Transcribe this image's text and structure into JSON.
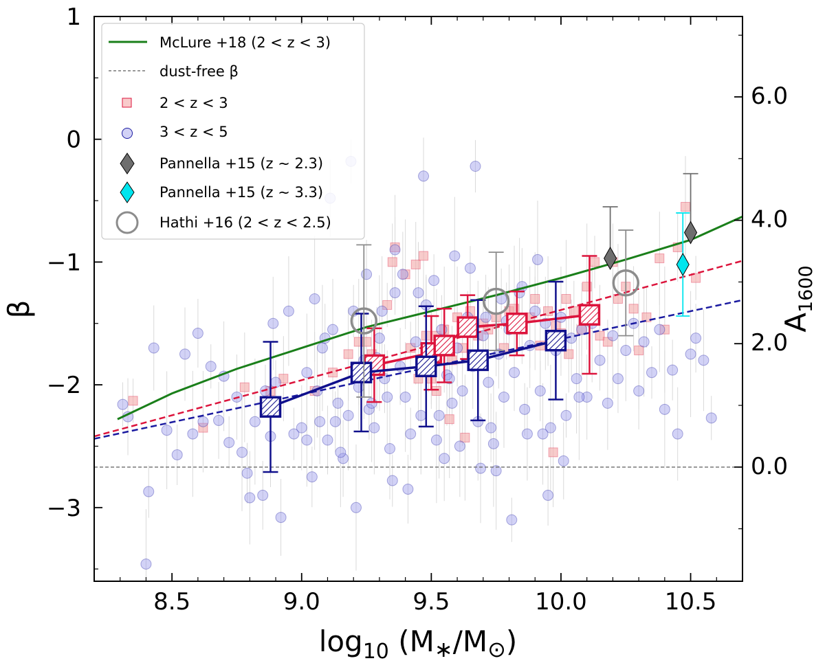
{
  "chart_data": {
    "type": "scatter",
    "xlabel": "log10 (M*/M⊙)",
    "xlabel_parts": {
      "base": "log",
      "sub": "10",
      "open": " (M",
      "star": "∗",
      "slash": "/M",
      "sun": "⊙",
      "close": ")"
    },
    "ylabel": "β",
    "y2label": "A1600",
    "y2label_parts": {
      "base": "A",
      "sub": "1600"
    },
    "xlim": [
      8.2,
      10.7
    ],
    "ylim": [
      -3.6,
      1.0
    ],
    "x_ticks": [
      8.5,
      9.0,
      9.5,
      10.0,
      10.5
    ],
    "x_tick_labels": [
      "8.5",
      "9.0",
      "9.5",
      "10.0",
      "10.5"
    ],
    "y_ticks": [
      1,
      0,
      -1,
      -2,
      -3
    ],
    "y_tick_labels": [
      "1",
      "0",
      "−1",
      "−2",
      "−3"
    ],
    "y2_ticks": [
      0.0,
      2.0,
      4.0,
      6.0
    ],
    "y2_tick_labels": [
      "0.0",
      "2.0",
      "4.0",
      "6.0"
    ],
    "y2_mapping": {
      "beta_at_zero": -2.67,
      "a_per_beta": 1.99
    },
    "legend": {
      "position": "top-left",
      "entries": [
        {
          "key": "mclure",
          "label": "McLure +18 (2 < z < 3)"
        },
        {
          "key": "dustfree",
          "label": "dust-free β"
        },
        {
          "key": "red",
          "label": "2 < z < 3"
        },
        {
          "key": "blue",
          "label": "3 < z < 5"
        },
        {
          "key": "pan23",
          "label": "Pannella +15 (z ∼ 2.3)"
        },
        {
          "key": "pan33",
          "label": "Pannella +15 (z ∼ 3.3)"
        },
        {
          "key": "hathi",
          "label": "Hathi +16 (2 < z < 2.5)"
        }
      ]
    },
    "colors": {
      "mclure": "#1a7f1a",
      "dustfree": "#777777",
      "red_fit": "#dc143c",
      "blue_fit": "#1a1aa0",
      "red_scatter": "#f4a8a8",
      "blue_scatter": "#9b9bea",
      "red_binned": "#dc143c",
      "blue_binned": "#10108c",
      "pannella_23": "#6e6e6e",
      "pannella_33": "#00e5ee",
      "hathi": "#8c8c8c"
    },
    "mclure_curve": {
      "x": [
        8.29,
        8.5,
        8.75,
        9.0,
        9.25,
        9.5,
        9.75,
        10.0,
        10.25,
        10.5,
        10.7
      ],
      "y": [
        -2.28,
        -2.07,
        -1.87,
        -1.7,
        -1.53,
        -1.4,
        -1.27,
        -1.13,
        -0.98,
        -0.82,
        -0.63
      ]
    },
    "dust_free_beta": -2.67,
    "red_fit_line": {
      "x": [
        8.2,
        10.7
      ],
      "y": [
        -2.42,
        -0.99
      ]
    },
    "blue_fit_line": {
      "x": [
        8.2,
        10.7
      ],
      "y": [
        -2.44,
        -1.31
      ]
    },
    "red_binned": {
      "x": [
        9.28,
        9.5,
        9.55,
        9.64,
        9.83,
        10.11
      ],
      "y": [
        -1.84,
        -1.74,
        -1.68,
        -1.53,
        -1.5,
        -1.43
      ],
      "yerr": [
        0.3,
        0.3,
        0.3,
        0.26,
        0.26,
        0.48
      ]
    },
    "blue_binned": {
      "x": [
        8.88,
        9.23,
        9.48,
        9.68,
        9.98
      ],
      "y": [
        -2.18,
        -1.9,
        -1.85,
        -1.8,
        -1.64
      ],
      "yerr": [
        0.53,
        0.48,
        0.49,
        0.49,
        0.48
      ]
    },
    "pannella_z23": {
      "x": [
        10.19,
        10.5
      ],
      "y": [
        -0.97,
        -0.76
      ],
      "yerr_up": [
        0.42,
        0.48
      ],
      "yerr_down": [
        0.0,
        0.0
      ]
    },
    "pannella_z33": {
      "x": [
        10.47
      ],
      "y": [
        -1.02
      ],
      "yerr": [
        0.42
      ]
    },
    "hathi16": {
      "x": [
        9.24,
        9.75,
        10.25
      ],
      "y": [
        -1.48,
        -1.32,
        -1.17
      ],
      "yerr": [
        0.62,
        0.4,
        0.43
      ]
    },
    "scatter_2_3": {
      "x": [
        8.35,
        8.62,
        8.78,
        8.88,
        8.93,
        9.05,
        9.12,
        9.18,
        9.22,
        9.25,
        9.3,
        9.33,
        9.35,
        9.4,
        9.42,
        9.45,
        9.48,
        9.5,
        9.52,
        9.55,
        9.58,
        9.6,
        9.62,
        9.65,
        9.68,
        9.7,
        9.72,
        9.75,
        9.78,
        9.8,
        9.82,
        9.85,
        9.88,
        9.9,
        9.92,
        9.95,
        9.98,
        10.0,
        10.02,
        10.05,
        10.08,
        10.1,
        10.12,
        10.15,
        10.18,
        10.2,
        10.22,
        10.25,
        10.28,
        10.3,
        10.33,
        10.38,
        10.4,
        10.45,
        10.48,
        10.52,
        10.03,
        9.97,
        10.13,
        9.44,
        9.57,
        9.36,
        9.47,
        9.63,
        9.27,
        9.52
      ],
      "y": [
        -2.13,
        -2.35,
        -2.02,
        -2.05,
        -1.95,
        -2.05,
        -1.9,
        -1.75,
        -1.65,
        -1.65,
        -1.8,
        -1.35,
        -1.0,
        -1.1,
        -1.7,
        -1.95,
        -1.6,
        -1.95,
        -1.6,
        -1.55,
        -1.8,
        -1.45,
        -1.7,
        -1.4,
        -1.6,
        -1.5,
        -1.55,
        -1.45,
        -1.7,
        -1.4,
        -1.38,
        -1.55,
        -1.45,
        -1.3,
        -1.68,
        -1.4,
        -1.52,
        -1.58,
        -1.3,
        -1.4,
        -1.55,
        -1.2,
        -1.45,
        -1.6,
        -1.65,
        -1.0,
        -1.3,
        -1.2,
        -1.38,
        -1.72,
        -1.45,
        -0.97,
        -1.55,
        -0.88,
        -0.55,
        -1.13,
        -1.75,
        -2.55,
        -1.0,
        -1.02,
        -2.28,
        -0.88,
        -0.95,
        -2.43,
        -1.75,
        -2.05
      ]
    },
    "scatter_3_5": {
      "x": [
        8.31,
        8.33,
        8.4,
        8.41,
        8.43,
        8.48,
        8.52,
        8.55,
        8.58,
        8.6,
        8.62,
        8.65,
        8.68,
        8.7,
        8.72,
        8.75,
        8.77,
        8.79,
        8.8,
        8.82,
        8.85,
        8.88,
        8.9,
        8.92,
        8.95,
        8.97,
        9.0,
        9.02,
        9.04,
        9.06,
        9.08,
        9.1,
        9.12,
        9.14,
        9.16,
        9.18,
        9.2,
        9.22,
        9.24,
        9.26,
        9.28,
        9.3,
        9.32,
        9.34,
        9.36,
        9.38,
        9.4,
        9.42,
        9.44,
        9.46,
        9.48,
        9.5,
        9.52,
        9.54,
        9.56,
        9.58,
        9.6,
        9.62,
        9.64,
        9.66,
        9.68,
        9.7,
        9.72,
        9.74,
        9.76,
        9.78,
        9.8,
        9.82,
        9.84,
        9.86,
        9.88,
        9.9,
        9.92,
        9.94,
        9.96,
        9.98,
        10.0,
        10.02,
        10.04,
        10.06,
        10.08,
        10.1,
        10.12,
        10.15,
        10.18,
        10.2,
        10.22,
        10.25,
        10.28,
        10.3,
        10.32,
        10.35,
        10.38,
        10.4,
        10.43,
        10.45,
        10.5,
        10.52,
        10.55,
        10.58,
        9.11,
        9.36,
        9.67,
        9.39,
        9.59,
        9.77,
        8.89,
        9.05,
        9.25,
        9.45,
        9.65,
        9.85,
        9.15,
        9.35,
        9.55,
        9.75,
        9.95,
        9.02,
        9.21,
        9.41,
        9.61,
        9.81,
        10.01,
        9.31,
        9.51,
        9.71,
        9.91,
        9.13,
        9.33,
        9.53,
        9.73,
        9.93,
        9.19,
        9.47,
        9.69,
        8.86,
        9.07,
        9.27,
        9.57,
        9.87,
        10.07,
        9.09,
        9.29,
        9.49,
        9.79
      ],
      "y": [
        -2.16,
        -2.26,
        -3.46,
        -2.87,
        -1.7,
        -2.37,
        -2.57,
        -1.75,
        -2.4,
        -1.58,
        -2.3,
        -1.85,
        -2.29,
        -1.93,
        -2.47,
        -2.1,
        -2.55,
        -2.72,
        -2.92,
        -2.3,
        -2.9,
        -2.42,
        -1.98,
        -3.08,
        -1.4,
        -2.4,
        -2.35,
        -1.9,
        -2.75,
        -2.05,
        -1.7,
        -2.45,
        -1.55,
        -2.15,
        -2.6,
        -2.25,
        -1.4,
        -2.02,
        -1.8,
        -2.2,
        -2.35,
        -1.62,
        -1.95,
        -2.52,
        -1.25,
        -1.85,
        -2.1,
        -2.4,
        -1.65,
        -2.25,
        -1.35,
        -1.78,
        -2.45,
        -1.55,
        -1.92,
        -2.15,
        -1.7,
        -2.05,
        -1.45,
        -1.85,
        -2.3,
        -1.6,
        -1.98,
        -2.48,
        -1.75,
        -2.1,
        -1.55,
        -1.9,
        -1.25,
        -2.2,
        -1.68,
        -1.4,
        -2.05,
        -1.5,
        -2.35,
        -1.72,
        -1.45,
        -2.25,
        -1.62,
        -1.95,
        -1.55,
        -2.1,
        -1.5,
        -1.8,
        -2.15,
        -1.6,
        -1.95,
        -1.72,
        -1.5,
        -2.05,
        -1.65,
        -1.9,
        -1.55,
        -2.2,
        -1.88,
        -2.4,
        -1.75,
        -1.62,
        -1.8,
        -2.27,
        -0.48,
        -0.9,
        -0.22,
        -1.1,
        -0.95,
        -1.3,
        -1.5,
        -1.3,
        -1.1,
        -1.25,
        -1.05,
        -1.2,
        -2.55,
        -2.78,
        -2.6,
        -2.7,
        -2.9,
        -2.45,
        -3.0,
        -2.85,
        -2.5,
        -3.1,
        -2.62,
        -1.4,
        -1.15,
        -1.45,
        -0.98,
        -2.3,
        -2.1,
        -2.25,
        -2.35,
        -2.4,
        -0.18,
        -0.3,
        -2.68,
        -2.05,
        -2.3,
        -2.15,
        -1.95,
        -2.4,
        -2.1,
        -1.62,
        -1.78,
        -1.88,
        -1.48
      ]
    }
  }
}
